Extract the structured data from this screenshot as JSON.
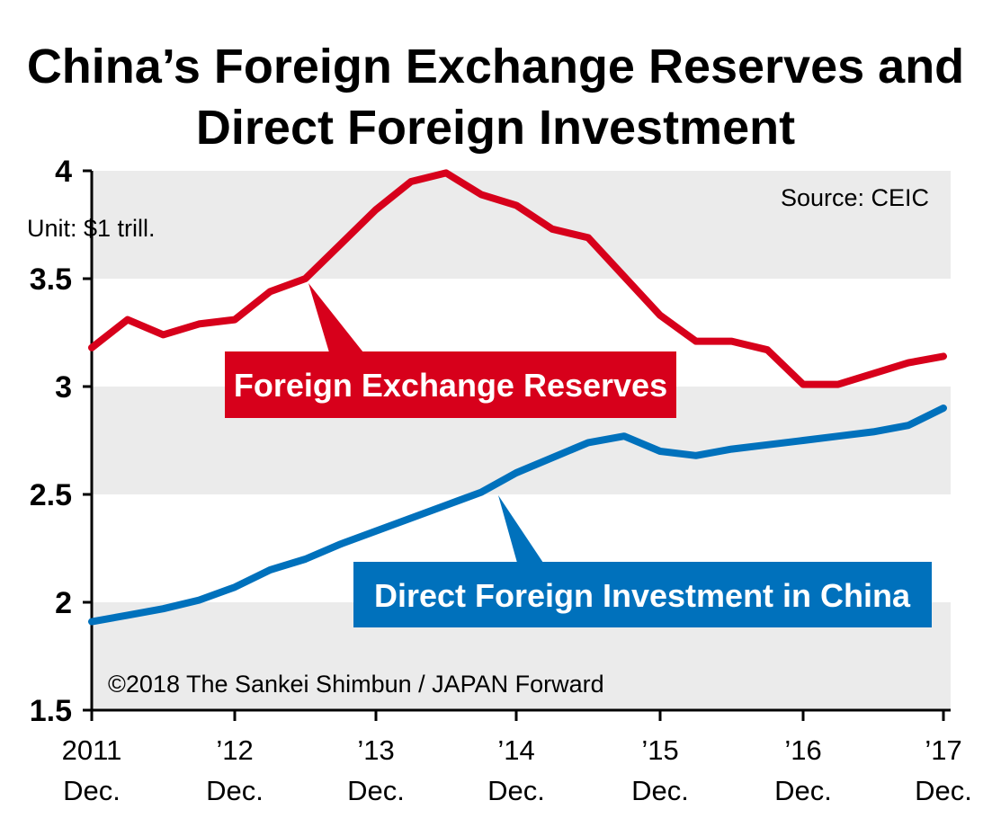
{
  "title_line1": "China’s Foreign Exchange Reserves and",
  "title_line2": "Direct Foreign Investment",
  "unit": "Unit: $1 trill.",
  "source": "Source: CEIC",
  "credit": "©2018 The Sankei Shimbun / JAPAN Forward",
  "colors": {
    "reserves": "#d7001b",
    "fdi": "#0071bc",
    "band": "#ebebeb"
  },
  "chart_data": {
    "type": "line",
    "ylim": [
      1.5,
      4
    ],
    "yticks": [
      "4",
      "3.5",
      "3",
      "2.5",
      "2",
      "1.5"
    ],
    "xticks": [
      {
        "year": "2011",
        "month": "Dec."
      },
      {
        "year": "’12",
        "month": "Dec."
      },
      {
        "year": "’13",
        "month": "Dec."
      },
      {
        "year": "’14",
        "month": "Dec."
      },
      {
        "year": "’15",
        "month": "Dec."
      },
      {
        "year": "’16",
        "month": "Dec."
      },
      {
        "year": "’17",
        "month": "Dec."
      }
    ],
    "grid": "alternating horizontal bands",
    "series": [
      {
        "name": "Foreign Exchange Reserves",
        "x": [
          "2011-12",
          "2012-03",
          "2012-06",
          "2012-09",
          "2012-12",
          "2013-03",
          "2013-06",
          "2013-09",
          "2013-12",
          "2014-03",
          "2014-06",
          "2014-09",
          "2014-12",
          "2015-03",
          "2015-06",
          "2015-09",
          "2015-12",
          "2016-03",
          "2016-06",
          "2016-09",
          "2016-12",
          "2017-03",
          "2017-06",
          "2017-09",
          "2017-12"
        ],
        "values": [
          3.18,
          3.31,
          3.24,
          3.29,
          3.31,
          3.44,
          3.5,
          3.66,
          3.82,
          3.95,
          3.99,
          3.89,
          3.84,
          3.73,
          3.69,
          3.51,
          3.33,
          3.21,
          3.21,
          3.17,
          3.01,
          3.01,
          3.06,
          3.11,
          3.14
        ]
      },
      {
        "name": "Direct Foreign Investment in China",
        "x": [
          "2011-12",
          "2012-03",
          "2012-06",
          "2012-09",
          "2012-12",
          "2013-03",
          "2013-06",
          "2013-09",
          "2013-12",
          "2014-03",
          "2014-06",
          "2014-09",
          "2014-12",
          "2015-03",
          "2015-06",
          "2015-09",
          "2015-12",
          "2016-03",
          "2016-06",
          "2016-09",
          "2016-12",
          "2017-03",
          "2017-06",
          "2017-09",
          "2017-12"
        ],
        "values": [
          1.91,
          1.94,
          1.97,
          2.01,
          2.07,
          2.15,
          2.2,
          2.27,
          2.33,
          2.39,
          2.45,
          2.51,
          2.6,
          2.67,
          2.74,
          2.77,
          2.7,
          2.68,
          2.71,
          2.73,
          2.75,
          2.77,
          2.79,
          2.82,
          2.9
        ]
      }
    ]
  }
}
